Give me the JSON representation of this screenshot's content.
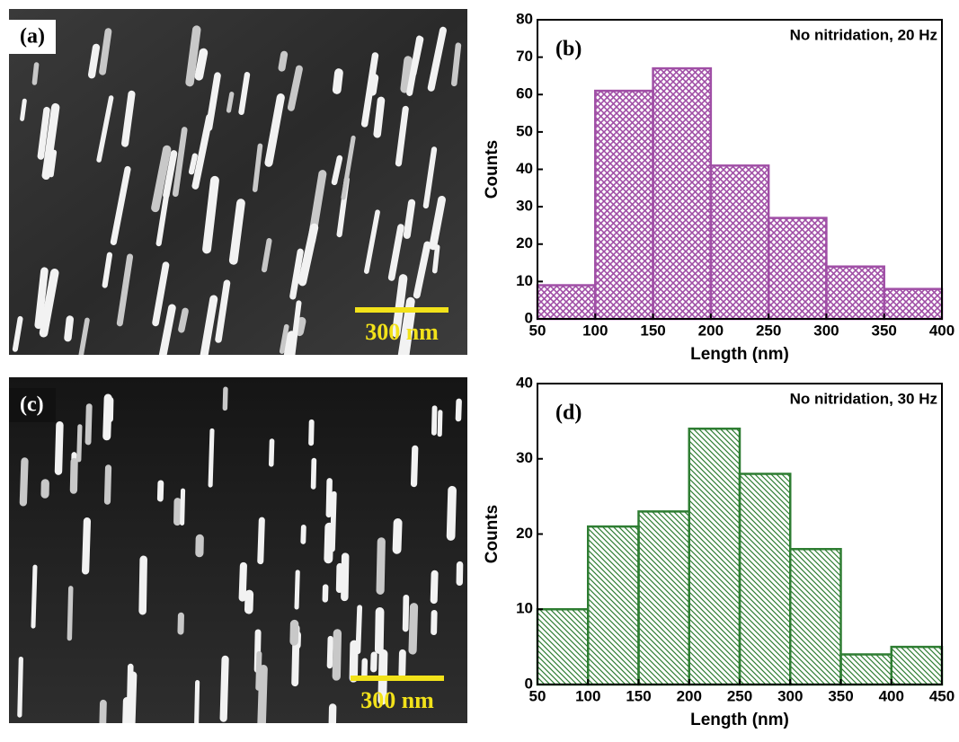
{
  "images": [
    {
      "label": "(a)",
      "scale_bar": "300 nm"
    },
    {
      "label": "(c)",
      "scale_bar": "300 nm"
    }
  ],
  "chart_data": [
    {
      "type": "histogram",
      "panel_label": "(b)",
      "annotation": "No nitridation, 20 Hz",
      "xlabel": "Length (nm)",
      "ylabel": "Counts",
      "bins": [
        50,
        100,
        150,
        200,
        250,
        300,
        350,
        400
      ],
      "counts": [
        9,
        61,
        67,
        41,
        27,
        14,
        8
      ],
      "color": "#a04fa6",
      "hatch": "crosshatch",
      "xlim": [
        50,
        400
      ],
      "ylim": [
        0,
        80
      ],
      "xticks": [
        50,
        100,
        150,
        200,
        250,
        300,
        350,
        400
      ],
      "yticks": [
        0,
        10,
        20,
        30,
        40,
        50,
        60,
        70,
        80
      ]
    },
    {
      "type": "histogram",
      "panel_label": "(d)",
      "annotation": "No nitridation, 30 Hz",
      "xlabel": "Length (nm)",
      "ylabel": "Counts",
      "bins": [
        50,
        100,
        150,
        200,
        250,
        300,
        350,
        400,
        450
      ],
      "counts": [
        10,
        21,
        23,
        34,
        28,
        18,
        4,
        5
      ],
      "color": "#2e7d32",
      "hatch": "diagonal",
      "xlim": [
        50,
        450
      ],
      "ylim": [
        0,
        40
      ],
      "xticks": [
        50,
        100,
        150,
        200,
        250,
        300,
        350,
        400,
        450
      ],
      "yticks": [
        0,
        10,
        20,
        30,
        40
      ]
    }
  ]
}
